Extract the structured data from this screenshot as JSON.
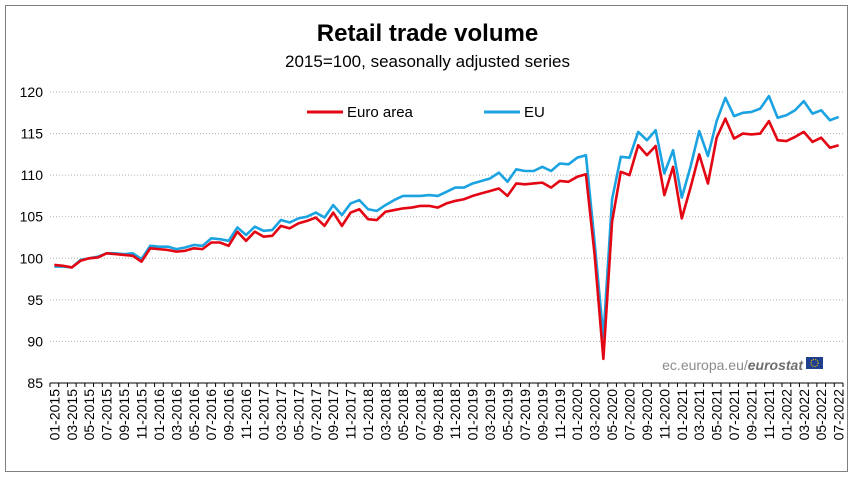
{
  "chart_data": {
    "type": "line",
    "title": "Retail trade volume",
    "subtitle": "2015=100, seasonally adjusted series",
    "xlabel": "",
    "ylabel": "",
    "ylim": [
      85,
      120
    ],
    "yticks": [
      85,
      90,
      95,
      100,
      105,
      110,
      115,
      120
    ],
    "grid": "horizontal",
    "legend_position": "top-center",
    "source": {
      "prefix": "ec.europa.eu/",
      "brand": "eurostat"
    },
    "x": [
      "01-2015",
      "02-2015",
      "03-2015",
      "04-2015",
      "05-2015",
      "06-2015",
      "07-2015",
      "08-2015",
      "09-2015",
      "10-2015",
      "11-2015",
      "12-2015",
      "01-2016",
      "02-2016",
      "03-2016",
      "04-2016",
      "05-2016",
      "06-2016",
      "07-2016",
      "08-2016",
      "09-2016",
      "10-2016",
      "11-2016",
      "12-2016",
      "01-2017",
      "02-2017",
      "03-2017",
      "04-2017",
      "05-2017",
      "06-2017",
      "07-2017",
      "08-2017",
      "09-2017",
      "10-2017",
      "11-2017",
      "12-2017",
      "01-2018",
      "02-2018",
      "03-2018",
      "04-2018",
      "05-2018",
      "06-2018",
      "07-2018",
      "08-2018",
      "09-2018",
      "10-2018",
      "11-2018",
      "12-2018",
      "01-2019",
      "02-2019",
      "03-2019",
      "04-2019",
      "05-2019",
      "06-2019",
      "07-2019",
      "08-2019",
      "09-2019",
      "10-2019",
      "11-2019",
      "12-2019",
      "01-2020",
      "02-2020",
      "03-2020",
      "04-2020",
      "05-2020",
      "06-2020",
      "07-2020",
      "08-2020",
      "09-2020",
      "10-2020",
      "11-2020",
      "12-2020",
      "01-2021",
      "02-2021",
      "03-2021",
      "04-2021",
      "05-2021",
      "06-2021",
      "07-2021",
      "08-2021",
      "09-2021",
      "10-2021",
      "11-2021",
      "12-2021",
      "01-2022",
      "02-2022",
      "03-2022",
      "04-2022",
      "05-2022",
      "06-2022",
      "07-2022"
    ],
    "tick_labels": [
      "01-2015",
      "03-2015",
      "05-2015",
      "07-2015",
      "09-2015",
      "11-2015",
      "01-2016",
      "03-2016",
      "05-2016",
      "07-2016",
      "09-2016",
      "11-2016",
      "01-2017",
      "03-2017",
      "05-2017",
      "07-2017",
      "09-2017",
      "11-2017",
      "01-2018",
      "03-2018",
      "05-2018",
      "07-2018",
      "09-2018",
      "11-2018",
      "01-2019",
      "03-2019",
      "05-2019",
      "07-2019",
      "09-2019",
      "11-2019",
      "01-2020",
      "03-2020",
      "05-2020",
      "07-2020",
      "09-2020",
      "11-2020",
      "01-2021",
      "03-2021",
      "05-2021",
      "07-2021",
      "09-2021",
      "11-2021",
      "01-2022",
      "03-2022",
      "05-2022",
      "07-2022"
    ],
    "series": [
      {
        "name": "Euro area",
        "color": "#e30613",
        "values": [
          99.2,
          99.1,
          98.9,
          99.7,
          100.0,
          100.1,
          100.6,
          100.5,
          100.4,
          100.3,
          99.6,
          101.2,
          101.1,
          101.0,
          100.8,
          100.9,
          101.2,
          101.1,
          101.9,
          101.9,
          101.5,
          103.2,
          102.1,
          103.2,
          102.6,
          102.7,
          103.9,
          103.6,
          104.2,
          104.5,
          104.9,
          103.9,
          105.5,
          103.9,
          105.5,
          105.9,
          104.7,
          104.6,
          105.6,
          105.8,
          106.0,
          106.1,
          106.3,
          106.3,
          106.1,
          106.6,
          106.9,
          107.1,
          107.5,
          107.8,
          108.1,
          108.4,
          107.5,
          109.0,
          108.9,
          109.0,
          109.1,
          108.5,
          109.3,
          109.2,
          109.8,
          110.1,
          100.4,
          87.9,
          104.4,
          110.4,
          110.0,
          113.6,
          112.4,
          113.5,
          107.6,
          111.0,
          104.8,
          108.5,
          112.5,
          109.0,
          114.5,
          116.8,
          114.4,
          115.0,
          114.9,
          115.0,
          116.5,
          114.2,
          114.1,
          114.6,
          115.2,
          114.0,
          114.5,
          113.3,
          113.6
        ]
      },
      {
        "name": "EU",
        "color": "#1ba3e1",
        "values": [
          99.0,
          99.0,
          98.9,
          99.8,
          100.0,
          100.2,
          100.6,
          100.6,
          100.5,
          100.6,
          99.9,
          101.5,
          101.4,
          101.4,
          101.1,
          101.3,
          101.6,
          101.5,
          102.4,
          102.3,
          102.1,
          103.7,
          102.8,
          103.8,
          103.3,
          103.4,
          104.6,
          104.3,
          104.8,
          105.0,
          105.5,
          104.9,
          106.4,
          105.2,
          106.6,
          107.0,
          105.9,
          105.7,
          106.4,
          107.0,
          107.5,
          107.5,
          107.5,
          107.6,
          107.5,
          108.0,
          108.5,
          108.5,
          109.0,
          109.3,
          109.6,
          110.3,
          109.2,
          110.7,
          110.5,
          110.5,
          111.0,
          110.5,
          111.4,
          111.3,
          112.1,
          112.4,
          101.9,
          90.5,
          107.1,
          112.2,
          112.1,
          115.2,
          114.2,
          115.4,
          110.2,
          113.0,
          107.3,
          111.0,
          115.3,
          112.3,
          116.5,
          119.3,
          117.1,
          117.5,
          117.6,
          118.0,
          119.5,
          116.9,
          117.2,
          117.8,
          118.9,
          117.4,
          117.8,
          116.6,
          117.0
        ]
      }
    ]
  }
}
